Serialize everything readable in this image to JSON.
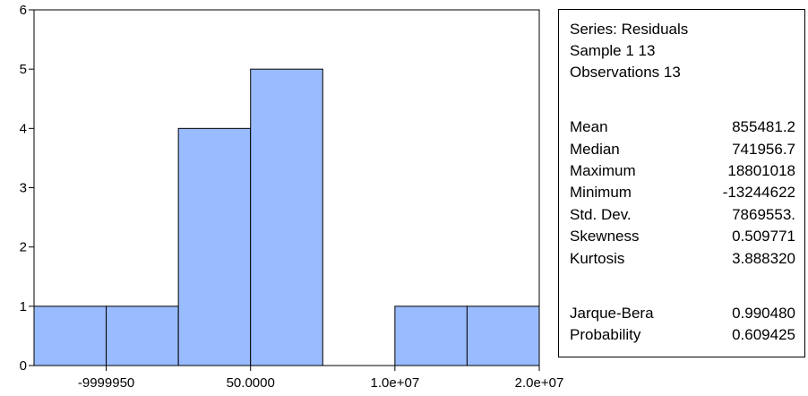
{
  "chart_data": {
    "type": "bar",
    "title": "",
    "xlabel": "",
    "ylabel": "",
    "bin_edges": [
      -15000000,
      -10000000,
      -5000000,
      0,
      5000000,
      10000000,
      15000000,
      20000000
    ],
    "counts": [
      1,
      1,
      4,
      5,
      0,
      1,
      1
    ],
    "ylim": [
      0,
      6
    ],
    "xlim": [
      -15000000,
      20000000
    ],
    "y_ticks": [
      0,
      1,
      2,
      3,
      4,
      5,
      6
    ],
    "x_ticks": [
      {
        "value": -10000000,
        "label": "-9999950"
      },
      {
        "value": 0,
        "label": "50.0000"
      },
      {
        "value": 10000000,
        "label": "1.0e+07"
      },
      {
        "value": 20000000,
        "label": "2.0e+07"
      }
    ],
    "bar_color": "#99BBFF",
    "grid": false
  },
  "stats": {
    "header": [
      "Series: Residuals",
      "Sample 1 13",
      "Observations 13"
    ],
    "rows": [
      {
        "name": "Mean",
        "value": "855481.2"
      },
      {
        "name": "Median",
        "value": "741956.7"
      },
      {
        "name": "Maximum",
        "value": "18801018"
      },
      {
        "name": "Minimum",
        "value": "-13244622"
      },
      {
        "name": "Std. Dev.",
        "value": "7869553."
      },
      {
        "name": "Skewness",
        "value": "0.509771"
      },
      {
        "name": "Kurtosis",
        "value": "3.888320"
      }
    ],
    "tests": [
      {
        "name": "Jarque-Bera",
        "value": "0.990480"
      },
      {
        "name": "Probability",
        "value": "0.609425"
      }
    ]
  }
}
